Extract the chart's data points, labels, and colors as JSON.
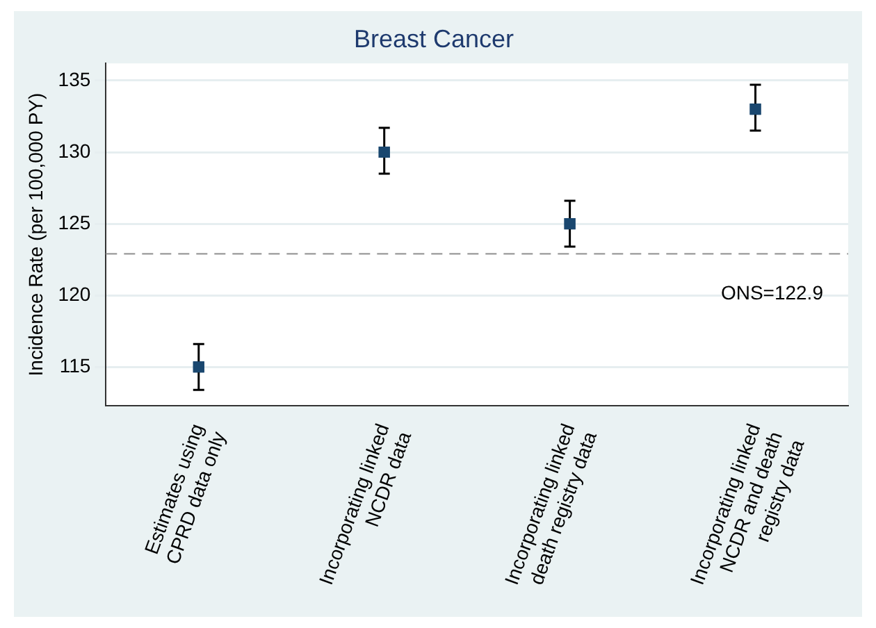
{
  "chart_data": {
    "type": "scatter",
    "title": "Breast Cancer",
    "ylabel": "Incidence Rate (per 100,000 PY)",
    "categories": [
      "Estimates using\nCPRD data only",
      "Incorporating linked\nNCDR data",
      "Incorporating linked\ndeath registry data",
      "Incorporating linked\nNCDR and death\nregistry data"
    ],
    "values": [
      115,
      130,
      125,
      133
    ],
    "errors": [
      [
        113.4,
        116.6
      ],
      [
        128.5,
        131.7
      ],
      [
        123.4,
        126.6
      ],
      [
        131.5,
        134.7
      ]
    ],
    "color": "#1a476f",
    "marker": "square",
    "ylim": [
      112.3,
      136.2
    ],
    "yticks": [
      115,
      120,
      125,
      130,
      135
    ],
    "grid": "y",
    "legend": false,
    "ref_lines": [
      {
        "axis": "y",
        "value": 122.9,
        "label": "ONS=122.9",
        "color": "#999999",
        "line_style": "dashed"
      }
    ]
  }
}
